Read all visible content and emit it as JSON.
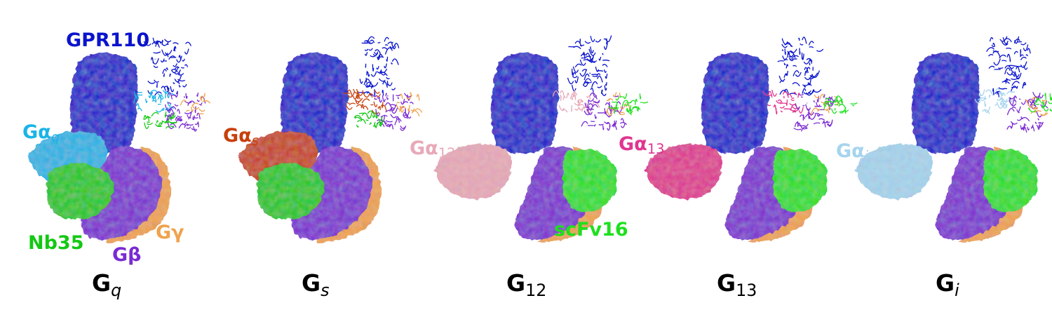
{
  "colors": {
    "receptor": "#0a14cc",
    "ga_q": "#1ab4e6",
    "ga_s": "#c83f0a",
    "ga_12": "#e8a9b8",
    "ga_13": "#e03590",
    "ga_i": "#a6d4ee",
    "gbeta": "#7a2ad2",
    "ggamma": "#f0a24e",
    "nb35": "#14c814",
    "scfv16": "#1ee01e",
    "title": "#000000"
  },
  "labels": {
    "receptor": "GPR110",
    "nb35": "Nb35",
    "gbeta": "Gβ",
    "ggamma": "Gγ",
    "scfv16": "scFv16",
    "ga_q": {
      "base": "Gα",
      "sub": "q"
    },
    "ga_s": {
      "base": "Gα",
      "sub": "s"
    },
    "ga_12": {
      "base": "Gα",
      "sub": "12"
    },
    "ga_13": {
      "base": "Gα",
      "sub": "13"
    },
    "ga_i": {
      "base": "Gα",
      "sub": "i"
    }
  },
  "panels": [
    {
      "id": "gq",
      "title_base": "G",
      "title_sub": "q",
      "alpha_key": "ga_q",
      "partner": "nb35"
    },
    {
      "id": "gs",
      "title_base": "G",
      "title_sub": "s",
      "alpha_key": "ga_s",
      "partner": "nb35"
    },
    {
      "id": "g12",
      "title_base": "G",
      "title_sub": "12",
      "alpha_key": "ga_12",
      "partner": "scfv16"
    },
    {
      "id": "g13",
      "title_base": "G",
      "title_sub": "13",
      "alpha_key": "ga_13",
      "partner": "scfv16"
    },
    {
      "id": "gi",
      "title_base": "G",
      "title_sub": "i",
      "alpha_key": "ga_i",
      "partner": "scfv16"
    }
  ]
}
